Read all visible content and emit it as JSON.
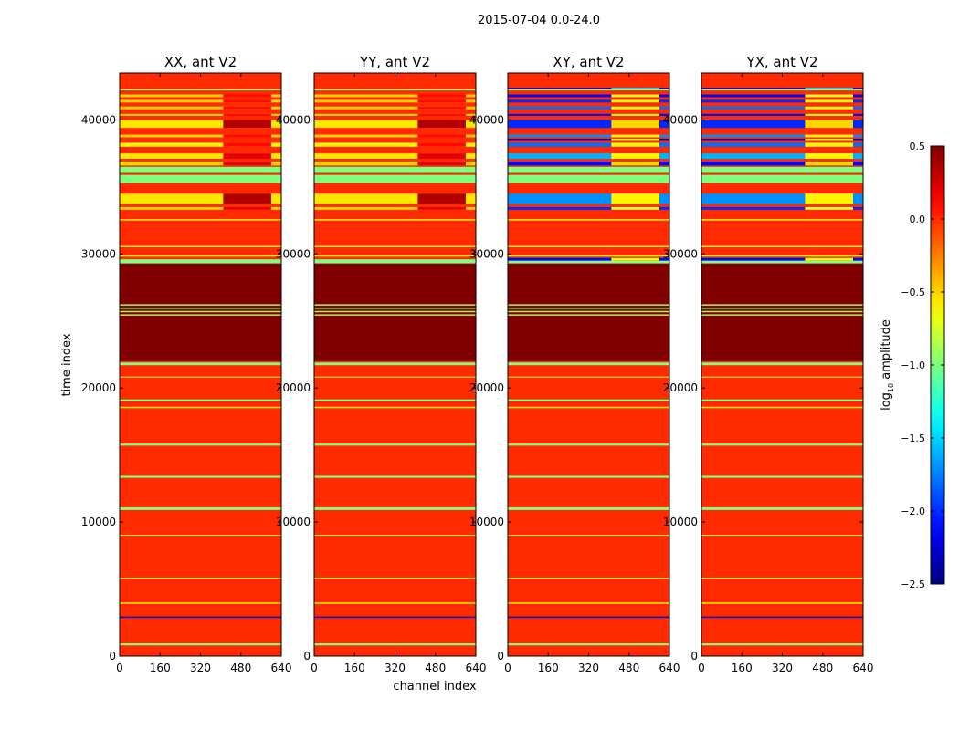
{
  "chart_data": {
    "type": "heatmap",
    "title": "2015-07-04 0.0-24.0",
    "xlabel": "channel index",
    "ylabel": "time index",
    "xlim": [
      0,
      640
    ],
    "ylim": [
      0,
      43500
    ],
    "xticks": [
      0,
      160,
      320,
      480,
      640
    ],
    "yticks": [
      0,
      10000,
      20000,
      30000,
      40000
    ],
    "colorbar": {
      "label": "log10 amplitude",
      "label_main": "log",
      "label_sub": "10",
      "label_rest": " amplitude",
      "range": [
        -2.5,
        0.5
      ],
      "ticks": [
        "0.5",
        "0.0",
        "−0.5",
        "−1.0",
        "−1.5",
        "−2.0",
        "−2.5"
      ],
      "tick_values": [
        0.5,
        0,
        -0.5,
        -1,
        -1.5,
        -2,
        -2.5
      ],
      "colormap": "jet"
    },
    "background_value": 0.0,
    "hot_channel_range": [
      410,
      600
    ],
    "common_bands": [
      [
        800,
        950,
        -1.0
      ],
      [
        2850,
        2950,
        -2.2
      ],
      [
        3900,
        4000,
        -0.6
      ],
      [
        5800,
        5850,
        -0.7
      ],
      [
        9000,
        9050,
        -0.7
      ],
      [
        10900,
        11100,
        -1.0
      ],
      [
        13300,
        13450,
        -1.0
      ],
      [
        15700,
        15850,
        -1.0
      ],
      [
        18500,
        18600,
        -0.6
      ],
      [
        19000,
        19150,
        -1.0
      ],
      [
        20800,
        20850,
        -0.7
      ],
      [
        21700,
        21900,
        -1.0
      ],
      [
        22000,
        29300,
        0.5
      ],
      [
        25400,
        25500,
        -0.9
      ],
      [
        25650,
        25750,
        -0.9
      ],
      [
        25900,
        26000,
        -0.9
      ],
      [
        26150,
        26250,
        -0.9
      ],
      [
        29300,
        29600,
        -1.0
      ],
      [
        29800,
        29900,
        -0.6
      ],
      [
        30500,
        30600,
        -0.6
      ],
      [
        32500,
        32600,
        -0.6
      ],
      [
        35300,
        35900,
        -1.0
      ],
      [
        36050,
        36500,
        -1.0
      ],
      [
        42200,
        42300,
        -1.0
      ]
    ],
    "panels": [
      {
        "title": "XX, ant V2",
        "bands": [
          [
            33300,
            33500,
            -0.5,
            0.2
          ],
          [
            33700,
            34500,
            -0.55,
            0.35
          ],
          [
            36600,
            36900,
            -0.5,
            0.2
          ],
          [
            37100,
            37500,
            -0.55,
            0.2
          ],
          [
            38000,
            38300,
            -0.6,
            0.1
          ],
          [
            38700,
            38900,
            -0.5,
            0.1
          ],
          [
            39400,
            40000,
            -0.55,
            0.35
          ],
          [
            40300,
            40450,
            -0.5,
            0.1
          ],
          [
            40800,
            41000,
            -0.5,
            0.1
          ],
          [
            41300,
            41500,
            -0.5,
            0.1
          ],
          [
            41700,
            41900,
            -0.5,
            0.1
          ]
        ]
      },
      {
        "title": "YY, ant V2",
        "bands": [
          [
            33300,
            33500,
            -0.5,
            0.2
          ],
          [
            33700,
            34500,
            -0.55,
            0.35
          ],
          [
            36600,
            36900,
            -0.5,
            0.2
          ],
          [
            37100,
            37500,
            -0.55,
            0.2
          ],
          [
            38000,
            38300,
            -0.6,
            0.1
          ],
          [
            38700,
            38900,
            -0.5,
            0.1
          ],
          [
            39400,
            40000,
            -0.55,
            0.35
          ],
          [
            40300,
            40450,
            -0.5,
            0.1
          ],
          [
            40800,
            41000,
            -0.5,
            0.1
          ],
          [
            41300,
            41500,
            -0.5,
            0.1
          ],
          [
            41700,
            41900,
            -0.5,
            0.1
          ]
        ]
      },
      {
        "title": "XY, ant V2",
        "bands": [
          [
            29500,
            29700,
            -2.1,
            -0.6
          ],
          [
            33300,
            33500,
            -2.0,
            -0.7
          ],
          [
            33700,
            34500,
            -1.7,
            -0.6
          ],
          [
            36600,
            36900,
            -2.1,
            -0.5
          ],
          [
            37100,
            37500,
            -1.6,
            -0.6
          ],
          [
            38000,
            38300,
            -1.8,
            -0.6
          ],
          [
            38500,
            38600,
            -2.2,
            -0.7
          ],
          [
            38700,
            38900,
            -1.7,
            -0.6
          ],
          [
            39400,
            40000,
            -2.0,
            -0.5
          ],
          [
            40300,
            40450,
            -2.1,
            -0.6
          ],
          [
            40800,
            41000,
            -1.8,
            -0.6
          ],
          [
            41300,
            41500,
            -2.0,
            -0.6
          ],
          [
            41700,
            41900,
            -2.1,
            -0.7
          ],
          [
            42300,
            42400,
            -2.3,
            -1.4
          ]
        ]
      },
      {
        "title": "YX, ant V2",
        "bands": [
          [
            29500,
            29700,
            -2.1,
            -0.6
          ],
          [
            33300,
            33500,
            -2.0,
            -0.7
          ],
          [
            33700,
            34500,
            -1.7,
            -0.6
          ],
          [
            36600,
            36900,
            -2.1,
            -0.5
          ],
          [
            37100,
            37500,
            -1.6,
            -0.6
          ],
          [
            38000,
            38300,
            -1.8,
            -0.6
          ],
          [
            38500,
            38600,
            -2.2,
            -0.7
          ],
          [
            38700,
            38900,
            -1.7,
            -0.6
          ],
          [
            39400,
            40000,
            -2.0,
            -0.5
          ],
          [
            40300,
            40450,
            -2.1,
            -0.6
          ],
          [
            40800,
            41000,
            -1.8,
            -0.6
          ],
          [
            41300,
            41500,
            -2.0,
            -0.6
          ],
          [
            41700,
            41900,
            -2.1,
            -0.7
          ],
          [
            42300,
            42400,
            -2.3,
            -1.4
          ]
        ]
      }
    ]
  }
}
